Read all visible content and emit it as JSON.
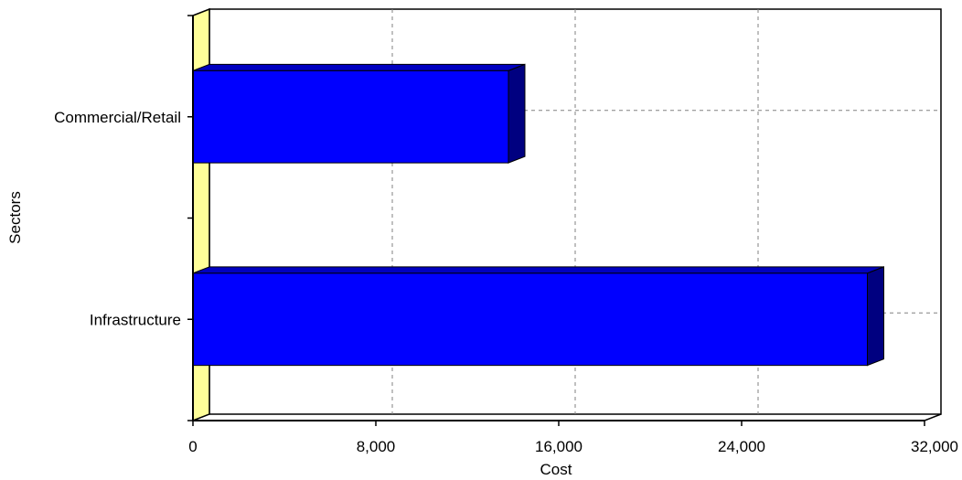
{
  "chart_data": {
    "type": "bar",
    "orientation": "horizontal",
    "style": "3d",
    "categories": [
      "Commercial/Retail",
      "Infrastructure"
    ],
    "series": [
      {
        "values": [
          13800,
          29500
        ]
      }
    ],
    "xlabel": "Cost",
    "ylabel": "Sectors",
    "xlim": [
      0,
      32000
    ],
    "xticks": [
      0,
      8000,
      16000,
      24000,
      32000
    ],
    "xtick_labels": [
      "0",
      "8,000",
      "16,000",
      "24,000",
      "32,000"
    ],
    "grid": true,
    "legend": "none",
    "colors": {
      "bar_front": "#0000ff",
      "bar_side": "#000080",
      "bar_top": "#0000c0",
      "wall": "#ffff99",
      "grid": "#808080",
      "axis": "#000000"
    }
  }
}
